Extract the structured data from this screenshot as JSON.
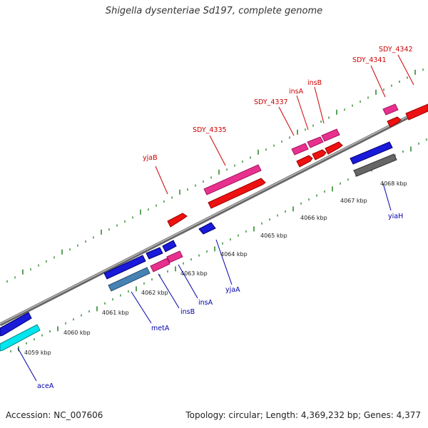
{
  "title": "Shigella dysenteriae Sd197, complete genome",
  "footer": {
    "accession": "Accession: NC_007606",
    "topology": "Topology: circular; Length: 4,369,232 bp; Genes: 4,377"
  },
  "colors": {
    "backbone": "#888888",
    "tick": "#2e8b2e",
    "upper_label": "#cc0000",
    "lower_label": "#0000aa"
  },
  "scale_labels": [
    "4059 kbp",
    "4060 kbp",
    "4061 kbp",
    "4062 kbp",
    "4063 kbp",
    "4064 kbp",
    "4065 kbp",
    "4066 kbp",
    "4067 kbp",
    "4068 kbp"
  ],
  "upper_labels": [
    "yjaB",
    "SDY_4335",
    "SDY_4337",
    "insA",
    "insB",
    "SDY_4341",
    "SDY_4342"
  ],
  "lower_labels": [
    "aceA",
    "metA",
    "insB",
    "insA",
    "yjaA",
    "yiaH"
  ],
  "features": [
    {
      "strand": "forward",
      "track": "outer",
      "color": "#e8318f",
      "label": "SDY_4335"
    },
    {
      "strand": "forward",
      "track": "inner",
      "color": "#ee1111",
      "label": ""
    },
    {
      "strand": "forward",
      "track": "inner",
      "color": "#ee1111",
      "label": "yjaB"
    },
    {
      "strand": "forward",
      "track": "outer",
      "color": "#e8318f",
      "label": "SDY_4337"
    },
    {
      "strand": "forward",
      "track": "outer",
      "color": "#e8318f",
      "label": "insA"
    },
    {
      "strand": "forward",
      "track": "outer",
      "color": "#e8318f",
      "label": "insB"
    },
    {
      "strand": "forward",
      "track": "inner",
      "color": "#ee1111",
      "label": ""
    },
    {
      "strand": "forward",
      "track": "inner",
      "color": "#ee1111",
      "label": ""
    },
    {
      "strand": "forward",
      "track": "inner",
      "color": "#ee1111",
      "label": ""
    },
    {
      "strand": "forward",
      "track": "outer",
      "color": "#e8318f",
      "label": "SDY_4341"
    },
    {
      "strand": "forward",
      "track": "inner",
      "color": "#ee1111",
      "label": "SDY_4342"
    },
    {
      "strand": "forward",
      "track": "outer",
      "color": "#ee1111",
      "label": ""
    },
    {
      "strand": "reverse",
      "track": "inner",
      "color": "#1a1adb",
      "label": ""
    },
    {
      "strand": "reverse",
      "track": "outer",
      "color": "#00e5ee",
      "label": "aceA"
    },
    {
      "strand": "reverse",
      "track": "inner",
      "color": "#1a1adb",
      "label": ""
    },
    {
      "strand": "reverse",
      "track": "outer",
      "color": "#4682b4",
      "label": "metA"
    },
    {
      "strand": "reverse",
      "track": "inner",
      "color": "#1a1adb",
      "label": ""
    },
    {
      "strand": "reverse",
      "track": "inner",
      "color": "#1a1adb",
      "label": ""
    },
    {
      "strand": "reverse",
      "track": "outer",
      "color": "#e8318f",
      "label": "insB"
    },
    {
      "strand": "reverse",
      "track": "outer",
      "color": "#e8318f",
      "label": "insA"
    },
    {
      "strand": "reverse",
      "track": "inner",
      "color": "#1a1adb",
      "label": "yjaA"
    },
    {
      "strand": "reverse",
      "track": "inner",
      "color": "#1a1adb",
      "label": ""
    },
    {
      "strand": "reverse",
      "track": "outer",
      "color": "#666666",
      "label": "yiaH"
    }
  ]
}
